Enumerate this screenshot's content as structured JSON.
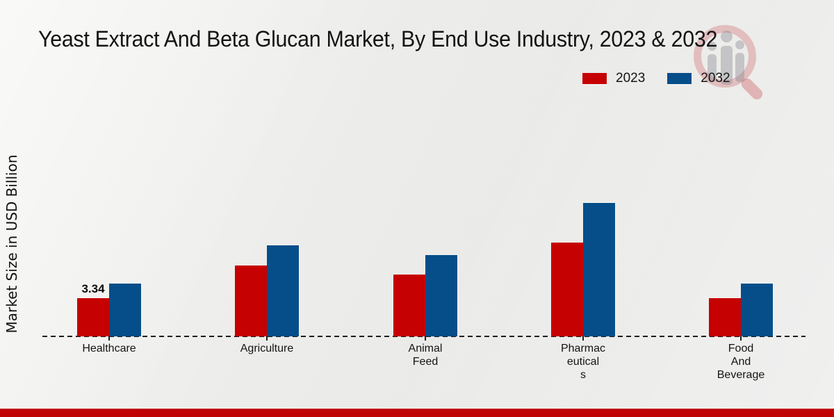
{
  "title": "Yeast Extract And Beta Glucan Market, By End Use Industry, 2023 & 2032",
  "y_axis_label": "Market Size in USD Billion",
  "legend": {
    "items": [
      {
        "label": "2023",
        "color": "#c50101"
      },
      {
        "label": "2032",
        "color": "#054e89"
      }
    ],
    "position": "top-right"
  },
  "chart_data": {
    "type": "bar",
    "title": "Yeast Extract And Beta Glucan Market, By End Use Industry, 2023 & 2032",
    "xlabel": "",
    "ylabel": "Market Size in USD Billion",
    "categories": [
      "Healthcare",
      "Agriculture",
      "Animal Feed",
      "Pharmaceuticals",
      "Food And Beverage"
    ],
    "series": [
      {
        "name": "2023",
        "color": "#c50101",
        "values": [
          3.34,
          6.22,
          5.41,
          8.19,
          3.37
        ]
      },
      {
        "name": "2032",
        "color": "#054e89",
        "values": [
          4.62,
          7.98,
          7.11,
          11.66,
          4.64
        ]
      }
    ],
    "annotations": [
      {
        "category": "Healthcare",
        "series": "2023",
        "text": "3.34"
      }
    ],
    "ylim": [
      0,
      12.5
    ],
    "grid": false,
    "y_tick_labels_visible": false,
    "axis_line_style": "dashed",
    "legend_position": "top-right"
  },
  "category_label_lines": [
    [
      "Healthcare"
    ],
    [
      "Agriculture"
    ],
    [
      "Animal",
      "Feed"
    ],
    [
      "Pharmac",
      "eutical",
      "s"
    ],
    [
      "Food",
      "And",
      "Beverage"
    ]
  ],
  "colors": {
    "series_2023": "#c50101",
    "series_2032": "#054e89",
    "footer_bar": "#c00202",
    "background": "#ececea",
    "axis_line": "#1c1c1c",
    "watermark_red": "#c6464c",
    "watermark_gray": "#8a8a92"
  },
  "icons": {
    "watermark": "magnifier-growth-chart-logo"
  }
}
